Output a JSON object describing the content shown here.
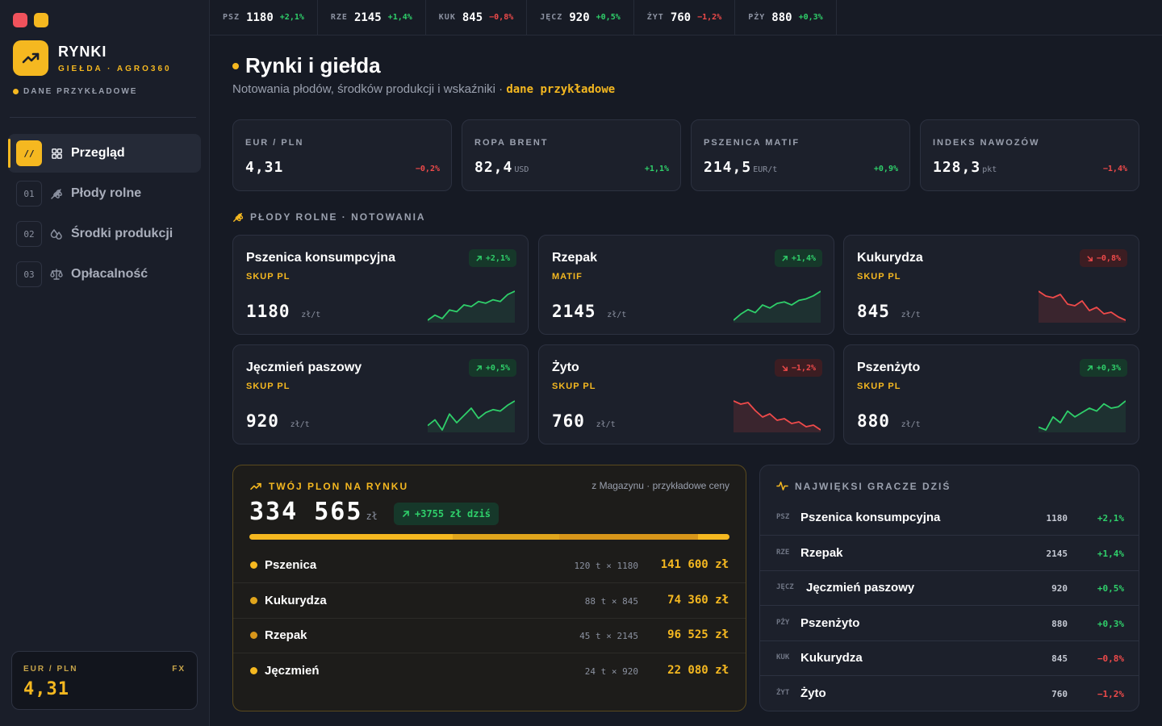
{
  "colors": {
    "accent": "#f5b820",
    "up": "#2fcf6a",
    "down": "#ef4a4a",
    "window_red": "#f0525c",
    "window_yellow": "#f5b820"
  },
  "sidebar": {
    "brand_title": "RYNKI",
    "brand_sub": "GIEŁDA · AGRO360",
    "sample_tag": "DANE PRZYKŁADOWE",
    "logo_icon": "trending-up-icon",
    "nav": [
      {
        "num": "//",
        "icon": "grid-icon",
        "label": "Przegląd",
        "active": true
      },
      {
        "num": "01",
        "icon": "wheat-icon",
        "label": "Płody rolne",
        "active": false
      },
      {
        "num": "02",
        "icon": "droplets-icon",
        "label": "Środki produkcji",
        "active": false
      },
      {
        "num": "03",
        "icon": "scale-icon",
        "label": "Opłacalność",
        "active": false
      }
    ],
    "fx": {
      "label": "EUR / PLN",
      "tag": "FX",
      "value": "4,31"
    }
  },
  "ticker": [
    {
      "code": "PSZ",
      "value": "1180",
      "change": "+2,1%",
      "dir": "up"
    },
    {
      "code": "RZE",
      "value": "2145",
      "change": "+1,4%",
      "dir": "up"
    },
    {
      "code": "KUK",
      "value": "845",
      "change": "−0,8%",
      "dir": "down"
    },
    {
      "code": "JĘCZ",
      "value": "920",
      "change": "+0,5%",
      "dir": "up"
    },
    {
      "code": "ŻYT",
      "value": "760",
      "change": "−1,2%",
      "dir": "down"
    },
    {
      "code": "PŻY",
      "value": "880",
      "change": "+0,3%",
      "dir": "up"
    }
  ],
  "header": {
    "title": "Rynki i giełda",
    "subtitle": "Notowania płodów, środków produkcji i wskaźniki · ",
    "subtitle_highlight": "dane przykładowe"
  },
  "kpis": [
    {
      "label": "EUR / PLN",
      "value": "4,31",
      "unit": "",
      "change": "−0,2%",
      "dir": "down"
    },
    {
      "label": "ROPA BRENT",
      "value": "82,4",
      "unit": "USD",
      "change": "+1,1%",
      "dir": "up"
    },
    {
      "label": "PSZENICA MATIF",
      "value": "214,5",
      "unit": "EUR/t",
      "change": "+0,9%",
      "dir": "up"
    },
    {
      "label": "INDEKS NAWOZÓW",
      "value": "128,3",
      "unit": "pkt",
      "change": "−1,4%",
      "dir": "down"
    }
  ],
  "crops_section": {
    "label": "PŁODY ROLNE · NOTOWANIA",
    "icon": "wheat-icon"
  },
  "crops": [
    {
      "name": "Pszenica konsumpcyjna",
      "source": "SKUP PL",
      "price": "1180",
      "unit": "zł/t",
      "change": "+2,1%",
      "dir": "up",
      "trend": [
        4,
        7,
        5,
        10,
        9,
        13,
        12,
        15,
        14,
        16,
        15,
        19,
        21
      ]
    },
    {
      "name": "Rzepak",
      "source": "MATIF",
      "price": "2145",
      "unit": "zł/t",
      "change": "+1,4%",
      "dir": "up",
      "trend": [
        2,
        6,
        9,
        7,
        12,
        10,
        13,
        14,
        12,
        15,
        16,
        18,
        21
      ]
    },
    {
      "name": "Kukurydza",
      "source": "SKUP PL",
      "price": "845",
      "unit": "zł/t",
      "change": "−0,8%",
      "dir": "down",
      "trend": [
        21,
        18,
        17,
        19,
        13,
        12,
        15,
        9,
        11,
        7,
        8,
        5,
        3
      ]
    },
    {
      "name": "Jęczmień paszowy",
      "source": "SKUP PL",
      "price": "920",
      "unit": "zł/t",
      "change": "+0,5%",
      "dir": "up",
      "trend": [
        8,
        12,
        5,
        16,
        10,
        15,
        20,
        13,
        17,
        19,
        18,
        22,
        25
      ]
    },
    {
      "name": "Żyto",
      "source": "SKUP PL",
      "price": "760",
      "unit": "zł/t",
      "change": "−1,2%",
      "dir": "down",
      "trend": [
        23,
        21,
        22,
        17,
        13,
        15,
        11,
        12,
        9,
        10,
        7,
        8,
        5
      ]
    },
    {
      "name": "Pszenżyto",
      "source": "SKUP PL",
      "price": "880",
      "unit": "zł/t",
      "change": "+0,3%",
      "dir": "up",
      "trend": [
        6,
        4,
        13,
        9,
        17,
        13,
        16,
        19,
        17,
        22,
        19,
        20,
        24
      ]
    }
  ],
  "yield": {
    "title": "TWÓJ PLON NA RYNKU",
    "icon": "trending-up-icon",
    "note": "z Magazynu · przykładowe ceny",
    "total": "334 565",
    "total_unit": "zł",
    "today": "+3755 zł dziś",
    "bar_shares": [
      141600,
      74360,
      96525,
      22080
    ],
    "bar_colors": [
      "#f5b820",
      "#e0a51c",
      "#d8961a",
      "#f5b820"
    ],
    "rows": [
      {
        "name": "Pszenica",
        "calc": "120 t × 1180",
        "value": "141 600 zł",
        "color": "#f5b820"
      },
      {
        "name": "Kukurydza",
        "calc": "88 t × 845",
        "value": "74 360 zł",
        "color": "#e0a51c"
      },
      {
        "name": "Rzepak",
        "calc": "45 t × 2145",
        "value": "96 525 zł",
        "color": "#d8961a"
      },
      {
        "name": "Jęczmień",
        "calc": "24 t × 920",
        "value": "22 080 zł",
        "color": "#f5b820"
      }
    ]
  },
  "movers": {
    "title": "NAJWIĘKSI GRACZE DZIŚ",
    "icon": "activity-icon",
    "rows": [
      {
        "code": "PSZ",
        "name": "Pszenica konsumpcyjna",
        "price": "1180",
        "change": "+2,1%",
        "dir": "up"
      },
      {
        "code": "RZE",
        "name": "Rzepak",
        "price": "2145",
        "change": "+1,4%",
        "dir": "up"
      },
      {
        "code": "JĘCZ",
        "name": "Jęczmień paszowy",
        "price": "920",
        "change": "+0,5%",
        "dir": "up"
      },
      {
        "code": "PŻY",
        "name": "Pszenżyto",
        "price": "880",
        "change": "+0,3%",
        "dir": "up"
      },
      {
        "code": "KUK",
        "name": "Kukurydza",
        "price": "845",
        "change": "−0,8%",
        "dir": "down"
      },
      {
        "code": "ŻYT",
        "name": "Żyto",
        "price": "760",
        "change": "−1,2%",
        "dir": "down"
      }
    ]
  }
}
